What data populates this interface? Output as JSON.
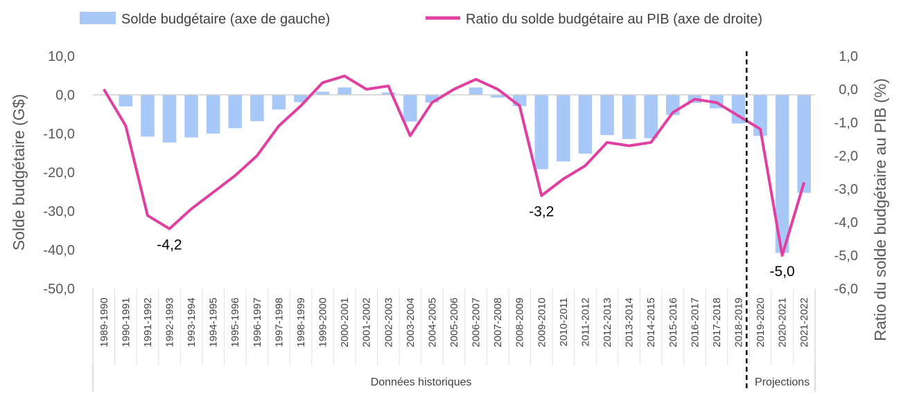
{
  "chart_data": {
    "type": "bar",
    "categories": [
      "1989-1990",
      "1990-1991",
      "1991-1992",
      "1992-1993",
      "1993-1994",
      "1994-1995",
      "1995-1996",
      "1996-1997",
      "1997-1998",
      "1998-1999",
      "1999-2000",
      "2000-2001",
      "2001-2002",
      "2002-2003",
      "2003-2004",
      "2004-2005",
      "2005-2006",
      "2006-2007",
      "2007-2008",
      "2008-2009",
      "2009-2010",
      "2010-2011",
      "2011-2012",
      "2012-2013",
      "2013-2014",
      "2014-2015",
      "2015-2016",
      "2016-2017",
      "2017-2018",
      "2018-2019",
      "2019-2020",
      "2020-2021",
      "2021-2022"
    ],
    "series": [
      {
        "name": "Solde budgétaire (axe de gauche)",
        "type": "bar",
        "axis": "left",
        "color": "#a8c8f8",
        "values": [
          0.0,
          -3.0,
          -10.8,
          -12.3,
          -11.0,
          -10.0,
          -8.6,
          -6.8,
          -3.8,
          -1.9,
          0.8,
          1.9,
          0.1,
          0.6,
          -6.9,
          -2.0,
          0.0,
          1.9,
          -0.7,
          -2.9,
          -19.2,
          -17.2,
          -15.2,
          -10.4,
          -11.4,
          -11.2,
          -5.2,
          -2.1,
          -3.5,
          -7.4,
          -10.6,
          -40.8,
          -25.3
        ]
      },
      {
        "name": "Ratio du solde budgétaire au PIB (axe de droite)",
        "type": "line",
        "axis": "right",
        "color": "#e040a0",
        "values": [
          0.0,
          -1.1,
          -3.8,
          -4.2,
          -3.6,
          -3.1,
          -2.6,
          -2.0,
          -1.1,
          -0.5,
          0.2,
          0.4,
          0.0,
          0.1,
          -1.4,
          -0.4,
          0.0,
          0.3,
          0.0,
          -0.5,
          -3.2,
          -2.7,
          -2.3,
          -1.6,
          -1.7,
          -1.6,
          -0.7,
          -0.3,
          -0.4,
          -0.8,
          -1.2,
          -5.0,
          -2.8
        ]
      }
    ],
    "ylabel": "Solde budgétaire (G$)",
    "ylabel_right": "Ratio du solde budgétaire au PIB (%)",
    "ylim": [
      -50,
      10
    ],
    "ylim_right": [
      -6,
      1
    ],
    "yticks": [
      "10,0",
      "0,0",
      "-10,0",
      "-20,0",
      "-30,0",
      "-40,0",
      "-50,0"
    ],
    "yticks_right": [
      "1,0",
      "0,0",
      "-1,0",
      "-2,0",
      "-3,0",
      "-4,0",
      "-5,0",
      "-6,0"
    ],
    "annotations": [
      {
        "text": "-4,2",
        "category": "1992-1993"
      },
      {
        "text": "-3,2",
        "category": "2009-2010"
      },
      {
        "text": "-5,0",
        "category": "2020-2021"
      }
    ],
    "groups": [
      {
        "label": "Données historiques",
        "from": "1989-1990",
        "to": "2018-2019"
      },
      {
        "label": "Projections",
        "from": "2019-2020",
        "to": "2021-2022"
      }
    ],
    "legend_position": "top",
    "grid": false
  }
}
